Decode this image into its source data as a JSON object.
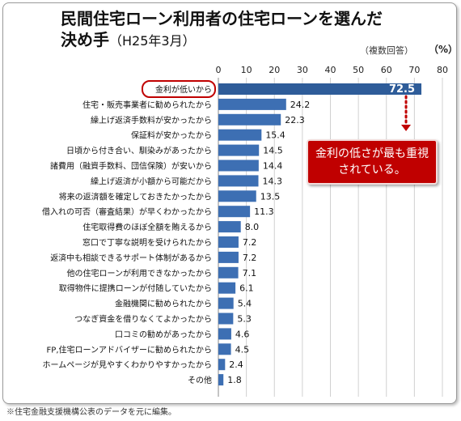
{
  "title_line1": "民間住宅ローン利用者の住宅ローンを選んだ",
  "title_line2": "決め手",
  "title_sub": "（H25年3月）",
  "note": "（複数回答）",
  "unit": "（%）",
  "callout": "金利の低さが最も重視されている。",
  "source": "※住宅金融支援機構公表のデータを元に編集。",
  "colors": {
    "bar": "#2e5c99",
    "bar_light": "#3d6fb3",
    "highlight": "#c00000",
    "grid": "#d0d0d0"
  },
  "chart_data": {
    "type": "bar",
    "orientation": "horizontal",
    "title": "民間住宅ローン利用者の住宅ローンを選んだ決め手（H25年3月）",
    "xlim": [
      0,
      80
    ],
    "xticks": [
      0,
      10,
      20,
      30,
      40,
      50,
      60,
      70,
      80
    ],
    "categories": [
      "金利が低いから",
      "住宅・販売事業者に勧められたから",
      "繰上げ返済手数料が安かったから",
      "保証料が安かったから",
      "日頃から付き合い、馴染みがあったから",
      "諸費用（融資手数料、団信保険）が安いから",
      "繰上げ返済が小額から可能だから",
      "将来の返済額を確定しておきたかったから",
      "借入れの可否（審査結果）が早くわかったから",
      "住宅取得費のほぼ全額を賄えるから",
      "窓口で丁寧な説明を受けられたから",
      "返済中も相談できるサポート体制があるから",
      "他の住宅ローンが利用できなかったから",
      "取得物件に提携ローンが付随していたから",
      "金融機関に勧められたから",
      "つなぎ資金を借りなくてよかったから",
      "口コミの勧めがあったから",
      "FP,住宅ローンアドバイザーに勧められたから",
      "ホームページが見やすくわかりやすかったから",
      "その他"
    ],
    "values": [
      72.5,
      24.2,
      22.3,
      15.4,
      14.5,
      14.4,
      14.3,
      13.5,
      11.3,
      8.0,
      7.2,
      7.2,
      7.1,
      6.1,
      5.4,
      5.3,
      4.6,
      4.5,
      2.4,
      1.8
    ],
    "value_labels": [
      "72.5",
      "24.2",
      "22.3",
      "15.4",
      "14.5",
      "14.4",
      "14.3",
      "13.5",
      "11.3",
      "8.0",
      "7.2",
      "7.2",
      "7.1",
      "6.1",
      "5.4",
      "5.3",
      "4.6",
      "4.5",
      "2.4",
      "1.8"
    ],
    "highlight_index": 0,
    "grid": true
  }
}
